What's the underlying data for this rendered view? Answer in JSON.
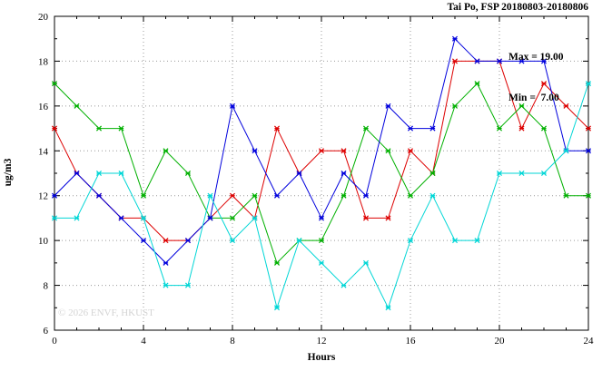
{
  "title": "Tai Po, FSP 20180803-20180806",
  "annotation": {
    "max_label": "Max = 19.00",
    "min_label": "Min =  7.00"
  },
  "watermark": "© 2026 ENVF, HKUST",
  "chart_data": {
    "type": "line",
    "title": "Tai Po, FSP 20180803-20180806",
    "xlabel": "Hours",
    "ylabel": "ug/m3",
    "xlim": [
      0,
      24
    ],
    "ylim": [
      6,
      20
    ],
    "x_major_ticks": [
      0,
      4,
      8,
      12,
      16,
      20,
      24
    ],
    "x_minor_step": 1,
    "y_major_ticks": [
      6,
      8,
      10,
      12,
      14,
      16,
      18,
      20
    ],
    "y_minor_step": 1,
    "grid": true,
    "legend_position": "none",
    "stat_max": 19.0,
    "stat_min": 7.0,
    "x": [
      0,
      1,
      2,
      3,
      4,
      5,
      6,
      7,
      8,
      9,
      10,
      11,
      12,
      13,
      14,
      15,
      16,
      17,
      18,
      19,
      20,
      21,
      22,
      23,
      24
    ],
    "series": [
      {
        "name": "red",
        "color": "#dd0000",
        "values": [
          15,
          13,
          12,
          11,
          11,
          10,
          10,
          11,
          12,
          11,
          15,
          13,
          14,
          14,
          11,
          11,
          14,
          13,
          18,
          18,
          18,
          15,
          17,
          16,
          15
        ]
      },
      {
        "name": "green",
        "color": "#00b000",
        "values": [
          17,
          16,
          15,
          15,
          12,
          14,
          13,
          11,
          11,
          12,
          9,
          10,
          10,
          12,
          15,
          14,
          12,
          13,
          16,
          17,
          15,
          16,
          15,
          12,
          12
        ]
      },
      {
        "name": "blue",
        "color": "#0000dd",
        "values": [
          12,
          13,
          12,
          11,
          10,
          9,
          10,
          11,
          16,
          14,
          12,
          13,
          11,
          13,
          12,
          16,
          15,
          15,
          19,
          18,
          18,
          18,
          18,
          14,
          14
        ]
      },
      {
        "name": "cyan",
        "color": "#00d6d6",
        "values": [
          11,
          11,
          13,
          13,
          11,
          8,
          8,
          12,
          10,
          11,
          7,
          10,
          9,
          8,
          9,
          7,
          10,
          12,
          10,
          10,
          13,
          13,
          13,
          14,
          17
        ]
      }
    ]
  },
  "layout": {
    "grid_color": "#9a9a9a",
    "axis_color": "#000000"
  }
}
